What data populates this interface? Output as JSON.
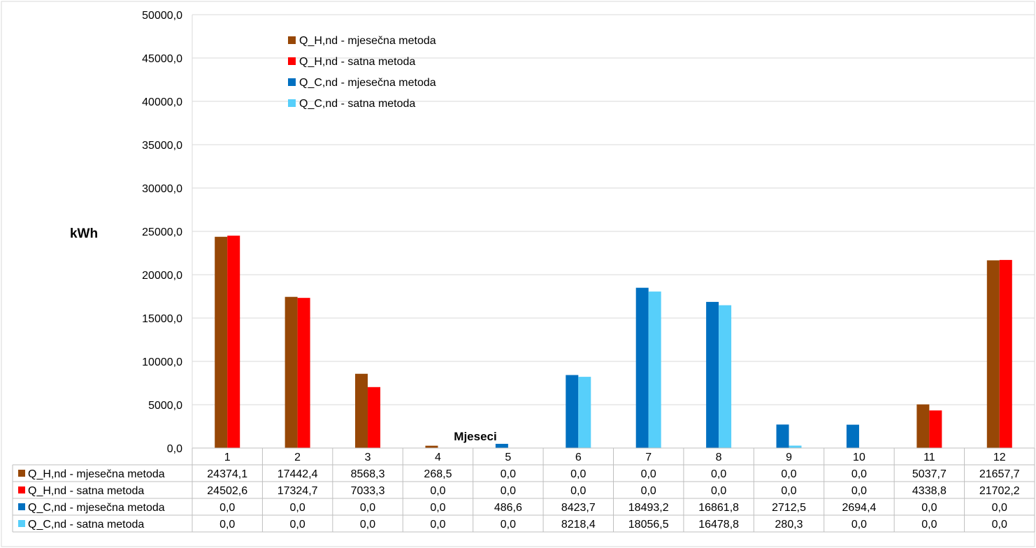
{
  "chart_data": {
    "type": "bar",
    "ylabel": "kWh",
    "xlabel": "Mjeseci",
    "ylim": [
      0,
      50000
    ],
    "ytick_step": 5000,
    "ytick_labels": [
      "0,0",
      "5000,0",
      "10000,0",
      "15000,0",
      "20000,0",
      "25000,0",
      "30000,0",
      "35000,0",
      "40000,0",
      "45000,0",
      "50000,0"
    ],
    "grid": true,
    "legend_position": "top-left",
    "data_table": true,
    "categories": [
      "1",
      "2",
      "3",
      "4",
      "5",
      "6",
      "7",
      "8",
      "9",
      "10",
      "11",
      "12"
    ],
    "series": [
      {
        "name": "Q_H,nd - mjesečna metoda",
        "color": "#974706",
        "values": [
          24374.1,
          17442.4,
          8568.3,
          268.5,
          0.0,
          0.0,
          0.0,
          0.0,
          0.0,
          0.0,
          5037.7,
          21657.7
        ],
        "labels": [
          "24374,1",
          "17442,4",
          "8568,3",
          "268,5",
          "0,0",
          "0,0",
          "0,0",
          "0,0",
          "0,0",
          "0,0",
          "5037,7",
          "21657,7"
        ]
      },
      {
        "name": "Q_H,nd - satna metoda",
        "color": "#ff0000",
        "values": [
          24502.6,
          17324.7,
          7033.3,
          0.0,
          0.0,
          0.0,
          0.0,
          0.0,
          0.0,
          0.0,
          4338.8,
          21702.2
        ],
        "labels": [
          "24502,6",
          "17324,7",
          "7033,3",
          "0,0",
          "0,0",
          "0,0",
          "0,0",
          "0,0",
          "0,0",
          "0,0",
          "4338,8",
          "21702,2"
        ]
      },
      {
        "name": "Q_C,nd - mjesečna metoda",
        "color": "#0070c0",
        "values": [
          0.0,
          0.0,
          0.0,
          0.0,
          486.6,
          8423.7,
          18493.2,
          16861.8,
          2712.5,
          2694.4,
          0.0,
          0.0
        ],
        "labels": [
          "0,0",
          "0,0",
          "0,0",
          "0,0",
          "486,6",
          "8423,7",
          "18493,2",
          "16861,8",
          "2712,5",
          "2694,4",
          "0,0",
          "0,0"
        ]
      },
      {
        "name": "Q_C,nd - satna metoda",
        "color": "#57cffa",
        "values": [
          0.0,
          0.0,
          0.0,
          0.0,
          0.0,
          8218.4,
          18056.5,
          16478.8,
          280.3,
          0.0,
          0.0,
          0.0
        ],
        "labels": [
          "0,0",
          "0,0",
          "0,0",
          "0,0",
          "0,0",
          "8218,4",
          "18056,5",
          "16478,8",
          "280,3",
          "0,0",
          "0,0",
          "0,0"
        ]
      }
    ]
  }
}
